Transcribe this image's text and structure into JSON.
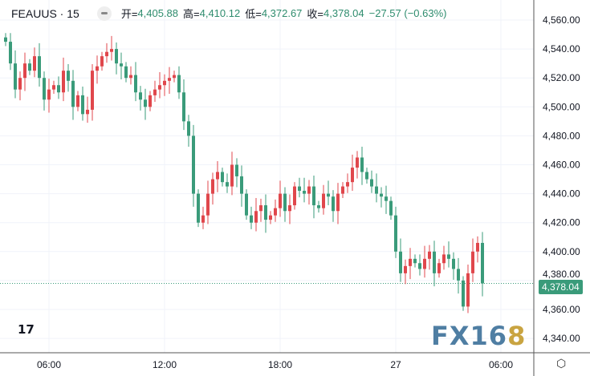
{
  "header": {
    "symbol": "FEAUUS · 15",
    "open_label": "开=",
    "open": "4,405.88",
    "high_label": "高=",
    "high": "4,410.12",
    "low_label": "低=",
    "low": "4,372.67",
    "close_label": "收=",
    "close": "4,378.04",
    "change": "−27.57 (−0.63%)"
  },
  "last_price_label": "4,378.04",
  "watermark": "FX168",
  "colors": {
    "up": "#e0474c",
    "down": "#3a9b7a",
    "grid": "#f0f3fa"
  },
  "chart_data": {
    "type": "candlestick",
    "ylim": [
      4330,
      4570
    ],
    "yticks": [
      "4,340.00",
      "4,360.00",
      "4,380.00",
      "4,400.00",
      "4,420.00",
      "4,440.00",
      "4,460.00",
      "4,480.00",
      "4,500.00",
      "4,520.00",
      "4,540.00",
      "4,560.00"
    ],
    "ytick_values": [
      4340,
      4360,
      4380,
      4400,
      4420,
      4440,
      4460,
      4480,
      4500,
      4520,
      4540,
      4560
    ],
    "xticks": [
      "06:00",
      "12:00",
      "18:00",
      "27",
      "06:00"
    ],
    "xtick_index": [
      9,
      33,
      57,
      81,
      102
    ],
    "last_price": 4378.04,
    "start_open": 4548,
    "closes": [
      4545,
      4530,
      4512,
      4520,
      4530,
      4525,
      4535,
      4520,
      4505,
      4512,
      4515,
      4510,
      4525,
      4518,
      4500,
      4508,
      4495,
      4498,
      4525,
      4528,
      4535,
      4538,
      4540,
      4530,
      4528,
      4520,
      4522,
      4510,
      4505,
      4500,
      4508,
      4512,
      4515,
      4518,
      4520,
      4522,
      4510,
      4490,
      4480,
      4440,
      4420,
      4425,
      4440,
      4450,
      4455,
      4448,
      4445,
      4460,
      4452,
      4440,
      4425,
      4420,
      4428,
      4432,
      4422,
      4425,
      4430,
      4440,
      4428,
      4432,
      4445,
      4442,
      4440,
      4445,
      4432,
      4430,
      4440,
      4438,
      4428,
      4440,
      4445,
      4448,
      4458,
      4465,
      4455,
      4450,
      4445,
      4440,
      4438,
      4435,
      4425,
      4400,
      4385,
      4390,
      4395,
      4392,
      4388,
      4395,
      4400,
      4385,
      4392,
      4398,
      4395,
      4388,
      4380,
      4362,
      4385,
      4400,
      4406,
      4378.04
    ]
  }
}
